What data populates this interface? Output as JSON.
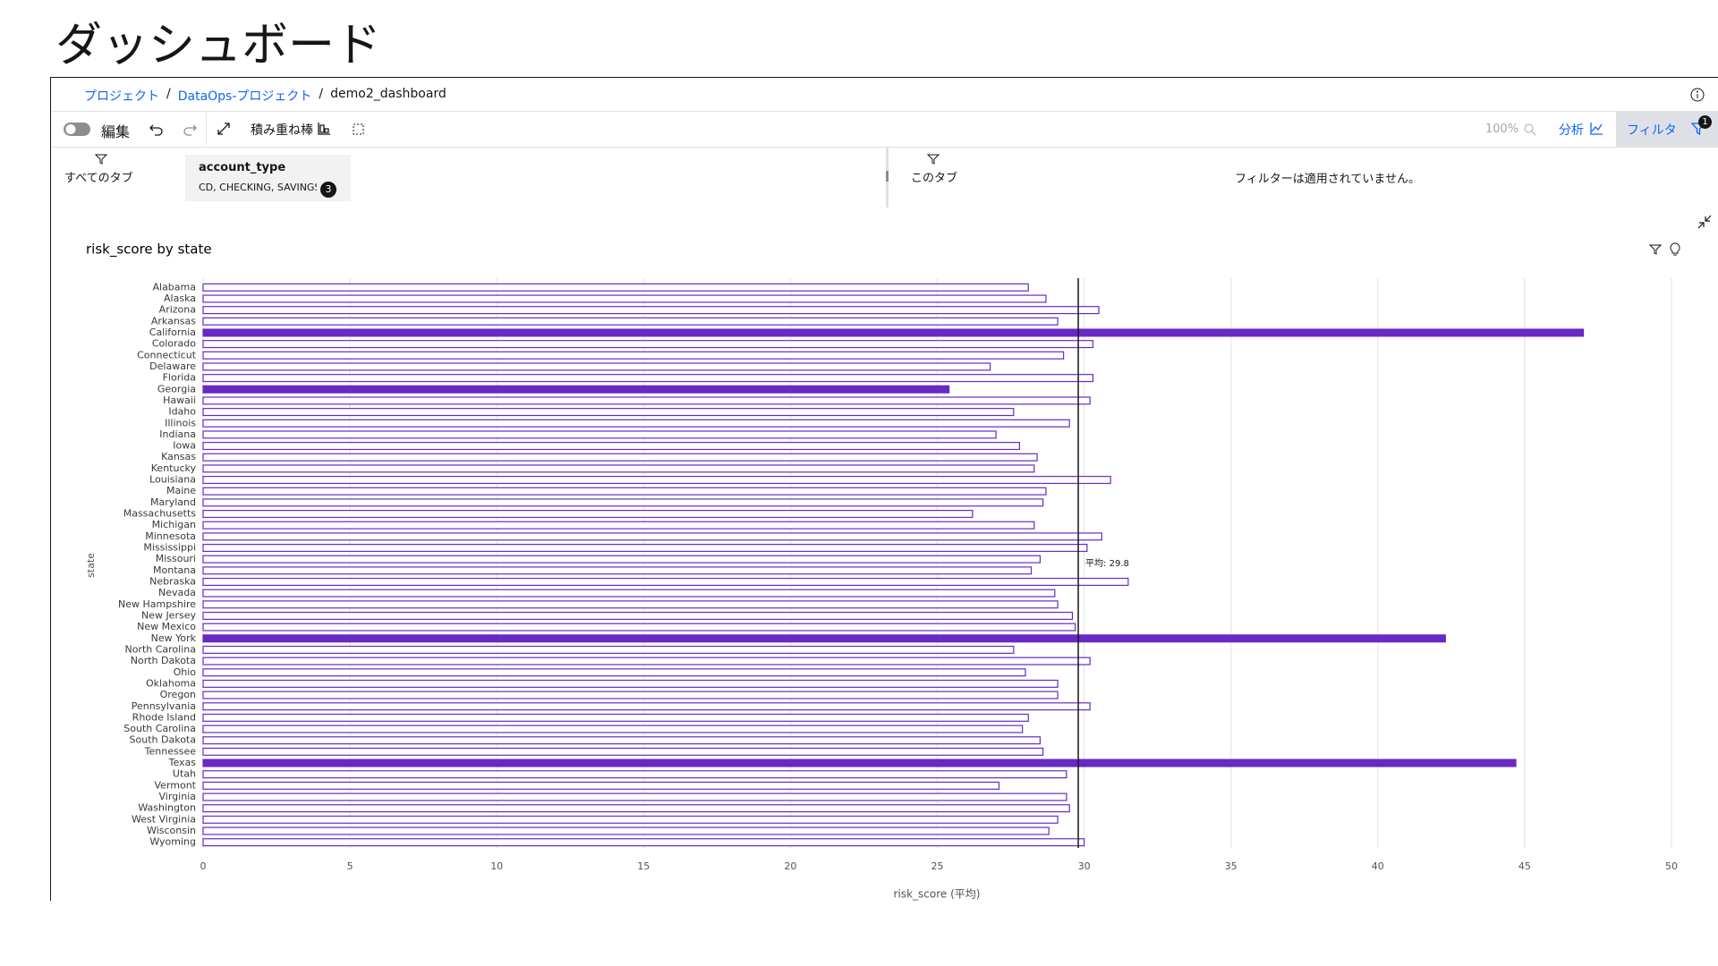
{
  "header": {
    "title": "ダッシュボード"
  },
  "breadcrumb": {
    "items": [
      "プロジェクト",
      "DataOps-プロジェクト",
      "demo2_dashboard"
    ],
    "separator": "/"
  },
  "toolbar": {
    "edit": "編集",
    "chart_type": "積み重ね棒",
    "zoom": "100%",
    "analyze": "分析",
    "filter": "フィルタ",
    "filter_badge": "1"
  },
  "filters": {
    "all_tabs": "すべてのタブ",
    "chip_title": "account_type",
    "chip_values": "CD, CHECKING, SAVINGS",
    "chip_badge": "3",
    "this_tab": "このタブ",
    "none_applied": "フィルターは適用されていません。"
  },
  "chart_data": {
    "type": "hbar",
    "title": "risk_score by state",
    "y_label": "state",
    "x_label": "risk_score (平均)",
    "categories": [
      "Alabama",
      "Alaska",
      "Arizona",
      "Arkansas",
      "California",
      "Colorado",
      "Connecticut",
      "Delaware",
      "Florida",
      "Georgia",
      "Hawaii",
      "Idaho",
      "Illinois",
      "Indiana",
      "Iowa",
      "Kansas",
      "Kentucky",
      "Louisiana",
      "Maine",
      "Maryland",
      "Massachusetts",
      "Michigan",
      "Minnesota",
      "Mississippi",
      "Missouri",
      "Montana",
      "Nebraska",
      "Nevada",
      "New Hampshire",
      "New Jersey",
      "New Mexico",
      "New York",
      "North Carolina",
      "North Dakota",
      "Ohio",
      "Oklahoma",
      "Oregon",
      "Pennsylvania",
      "Rhode Island",
      "South Carolina",
      "South Dakota",
      "Tennessee",
      "Texas",
      "Utah",
      "Vermont",
      "Virginia",
      "Washington",
      "West Virginia",
      "Wisconsin",
      "Wyoming"
    ],
    "values": [
      28.1,
      28.7,
      30.5,
      29.1,
      47.0,
      30.3,
      29.3,
      26.8,
      30.3,
      25.4,
      30.2,
      27.6,
      29.5,
      27.0,
      27.8,
      28.4,
      28.3,
      30.9,
      28.7,
      28.6,
      26.2,
      28.3,
      30.6,
      30.1,
      28.5,
      28.2,
      31.5,
      29.0,
      29.1,
      29.6,
      29.7,
      42.3,
      27.6,
      30.2,
      28.0,
      29.1,
      29.1,
      30.2,
      28.1,
      27.9,
      28.5,
      28.6,
      44.7,
      29.4,
      27.1,
      29.4,
      29.5,
      29.1,
      28.8,
      30.0
    ],
    "color": "#6929c4",
    "highlight": [
      4,
      9,
      31,
      42
    ],
    "xlim": [
      0,
      50
    ],
    "xticks": [
      0,
      5,
      10,
      15,
      20,
      25,
      30,
      35,
      40,
      45,
      50
    ],
    "grid": true,
    "average": {
      "value": 29.8,
      "label": "平均: 29.8"
    }
  }
}
